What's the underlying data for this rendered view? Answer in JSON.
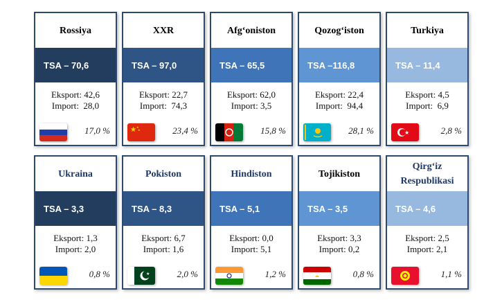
{
  "cards": [
    {
      "name": "Rossiya",
      "tsa": "TSA – 70,6",
      "eksport": "Eksport: 42,6",
      "import": "Import:  28,0",
      "share": "17,0 %",
      "flag_icon": "russia-flag-icon",
      "tsa_color": "#233d5e"
    },
    {
      "name": "XXR",
      "tsa": "TSA – 97,0",
      "eksport": "Eksport: 22,7",
      "import": "Import:  74,3",
      "share": "23,4 %",
      "flag_icon": "china-flag-icon",
      "tsa_color": "#2e5585"
    },
    {
      "name": "Afg‘oniston",
      "tsa": "TSA – 65,5",
      "eksport": "Eksport: 62,0",
      "import": "Import: 3,5",
      "share": "15,8 %",
      "flag_icon": "afghanistan-flag-icon",
      "tsa_color": "#3f74b8"
    },
    {
      "name": "Qozog‘iston",
      "tsa": "TSA –116,8",
      "eksport": "Eksport: 22,4",
      "import": "Import:  94,4",
      "share": "28,1 %",
      "flag_icon": "kazakhstan-flag-icon",
      "tsa_color": "#5f95d2"
    },
    {
      "name": "Turkiya",
      "tsa": "TSA – 11,4",
      "eksport": "Eksport: 4,5",
      "import": "Import:  6,9",
      "share": "2,8 %",
      "flag_icon": "turkey-flag-icon",
      "tsa_color": "#97b9e0"
    },
    {
      "name": "Ukraina",
      "tsa": "TSA – 3,3",
      "eksport": "Eksport: 1,3",
      "import": "Import: 2,0",
      "share": "0,8 %",
      "flag_icon": "ukraine-flag-icon",
      "tsa_color": "#233d5e"
    },
    {
      "name": "Pokiston",
      "tsa": "TSA – 8,3",
      "eksport": "Eksport: 6,7",
      "import": "Import: 1,6",
      "share": "2,0 %",
      "flag_icon": "pakistan-flag-icon",
      "tsa_color": "#2e5585"
    },
    {
      "name": "Hindiston",
      "tsa": "TSA – 5,1",
      "eksport": "Eksport: 0,0",
      "import": "Import: 5,1",
      "share": "1,2 %",
      "flag_icon": "india-flag-icon",
      "tsa_color": "#3f74b8"
    },
    {
      "name": "Tojikiston",
      "tsa": "TSA – 3,5",
      "eksport": "Eksport: 3,3",
      "import": "Import: 0,2",
      "share": "0,8 %",
      "flag_icon": "tajikistan-flag-icon",
      "tsa_color": "#5f95d2"
    },
    {
      "name": "Qirg‘iz Respublikasi",
      "tsa": "TSA – 4,6",
      "eksport": "Eksport: 2,5",
      "import": "Import: 2,1",
      "share": "1,1 %",
      "flag_icon": "kyrgyzstan-flag-icon",
      "tsa_color": "#97b9e0"
    }
  ],
  "name_colors": {
    "dark": "#000000",
    "blue": "#1f3864"
  }
}
